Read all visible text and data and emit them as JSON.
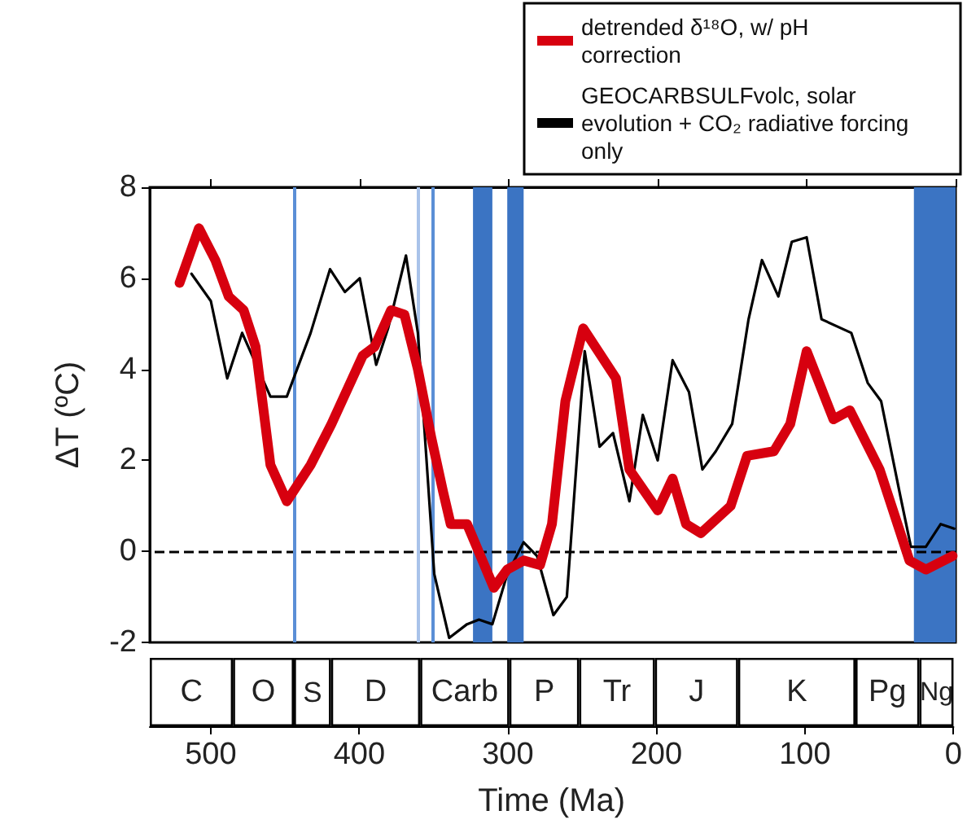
{
  "chart_data": [
    {
      "type": "line",
      "xlabel": null,
      "ylabel": "ΔT (ºC)",
      "xlim": [
        541,
        0
      ],
      "xticks": [
        500,
        400,
        300,
        200,
        100,
        0
      ],
      "ylim": [
        -2,
        8
      ],
      "yticks": [
        -2,
        0,
        2,
        4,
        6,
        8
      ],
      "tick_labels": "y",
      "legend": "top right",
      "marker": "none",
      "series": [
        {
          "name": "detrended δ¹⁸O, w/ pH correction",
          "color": "#d7000f",
          "x": [
            521,
            508,
            497,
            488,
            478,
            470,
            460,
            449,
            433,
            419,
            398,
            390,
            379,
            370,
            361,
            352,
            344,
            339,
            328,
            319,
            310,
            301,
            290,
            279,
            271,
            262,
            250,
            228,
            219,
            200,
            190,
            181,
            171,
            151,
            140,
            122,
            111,
            100,
            82,
            71,
            51,
            31,
            20,
            2
          ],
          "values": [
            5.9,
            7.1,
            6.4,
            5.6,
            5.3,
            4.5,
            1.9,
            1.1,
            1.9,
            2.8,
            4.3,
            4.5,
            5.3,
            5.2,
            4.0,
            2.5,
            1.3,
            0.6,
            0.6,
            -0.1,
            -0.8,
            -0.4,
            -0.2,
            -0.3,
            0.6,
            3.3,
            4.9,
            3.8,
            1.8,
            0.9,
            1.6,
            0.6,
            0.4,
            1.0,
            2.1,
            2.2,
            2.8,
            4.4,
            2.9,
            3.1,
            1.8,
            -0.2,
            -0.4,
            -0.1
          ]
        },
        {
          "name": "GEOCARBSULFvolc, solar evolution + CO₂ radiative forcing only",
          "color": "#000000",
          "x": [
            513,
            500,
            489,
            479,
            460,
            449,
            433,
            420,
            410,
            400,
            389,
            381,
            369,
            361,
            350,
            340,
            328,
            320,
            311,
            301,
            290,
            281,
            270,
            261,
            249,
            239,
            230,
            219,
            210,
            200,
            190,
            179,
            170,
            161,
            150,
            139,
            130,
            119,
            110,
            100,
            90,
            70,
            59,
            50,
            37,
            30,
            20,
            10,
            1
          ],
          "values": [
            6.1,
            5.5,
            3.8,
            4.8,
            3.4,
            3.4,
            4.8,
            6.2,
            5.7,
            6.0,
            4.1,
            4.9,
            6.5,
            4.8,
            -0.5,
            -1.9,
            -1.6,
            -1.5,
            -1.6,
            -0.5,
            0.2,
            -0.1,
            -1.4,
            -1.0,
            4.4,
            2.3,
            2.6,
            1.1,
            3.0,
            2.0,
            4.2,
            3.5,
            1.8,
            2.2,
            2.8,
            5.1,
            6.4,
            5.6,
            6.8,
            6.9,
            5.1,
            4.8,
            3.7,
            3.3,
            1.2,
            0.1,
            0.1,
            0.6,
            0.5
          ]
        }
      ],
      "ref_lines": [
        {
          "axis": "y",
          "value": 0,
          "color": "#000000",
          "line_style": "dashed"
        },
        {
          "axis": "x",
          "value": 444,
          "color": "#5b8fd6"
        },
        {
          "axis": "x",
          "value": 361,
          "color": "#a9c3ea"
        },
        {
          "axis": "x",
          "value": 351,
          "color": "#5b8fd6"
        }
      ],
      "bands": [
        {
          "axis": "x",
          "from": 324,
          "to": 311,
          "color": "#3b74c3"
        },
        {
          "axis": "x",
          "from": 301,
          "to": 290,
          "color": "#3b74c3"
        },
        {
          "axis": "x",
          "from": 28,
          "to": 0,
          "color": "#3b74c3"
        }
      ]
    },
    {
      "type": "bar",
      "orientation": "horizontal",
      "stacked": true,
      "xlabel": "Time (Ma)",
      "xlim": [
        541,
        0
      ],
      "xticks": [
        500,
        400,
        300,
        200,
        100,
        0
      ],
      "tick_labels": "x",
      "legend": false,
      "categories": [
        null
      ],
      "series": [
        {
          "name": "Ng",
          "color": "#ffffff",
          "values": [
            23
          ]
        },
        {
          "name": "Pg",
          "color": "#ffffff",
          "values": [
            43
          ]
        },
        {
          "name": "K",
          "color": "#ffffff",
          "values": [
            79
          ]
        },
        {
          "name": "J",
          "color": "#ffffff",
          "values": [
            56
          ]
        },
        {
          "name": "Tr",
          "color": "#ffffff",
          "values": [
            51
          ]
        },
        {
          "name": "P",
          "color": "#ffffff",
          "values": [
            47
          ]
        },
        {
          "name": "Carb",
          "color": "#ffffff",
          "values": [
            60
          ]
        },
        {
          "name": "D",
          "color": "#ffffff",
          "values": [
            60
          ]
        },
        {
          "name": "S",
          "color": "#ffffff",
          "values": [
            25
          ]
        },
        {
          "name": "O",
          "color": "#ffffff",
          "values": [
            41
          ]
        },
        {
          "name": "C",
          "color": "#ffffff",
          "values": [
            56
          ]
        }
      ]
    }
  ]
}
